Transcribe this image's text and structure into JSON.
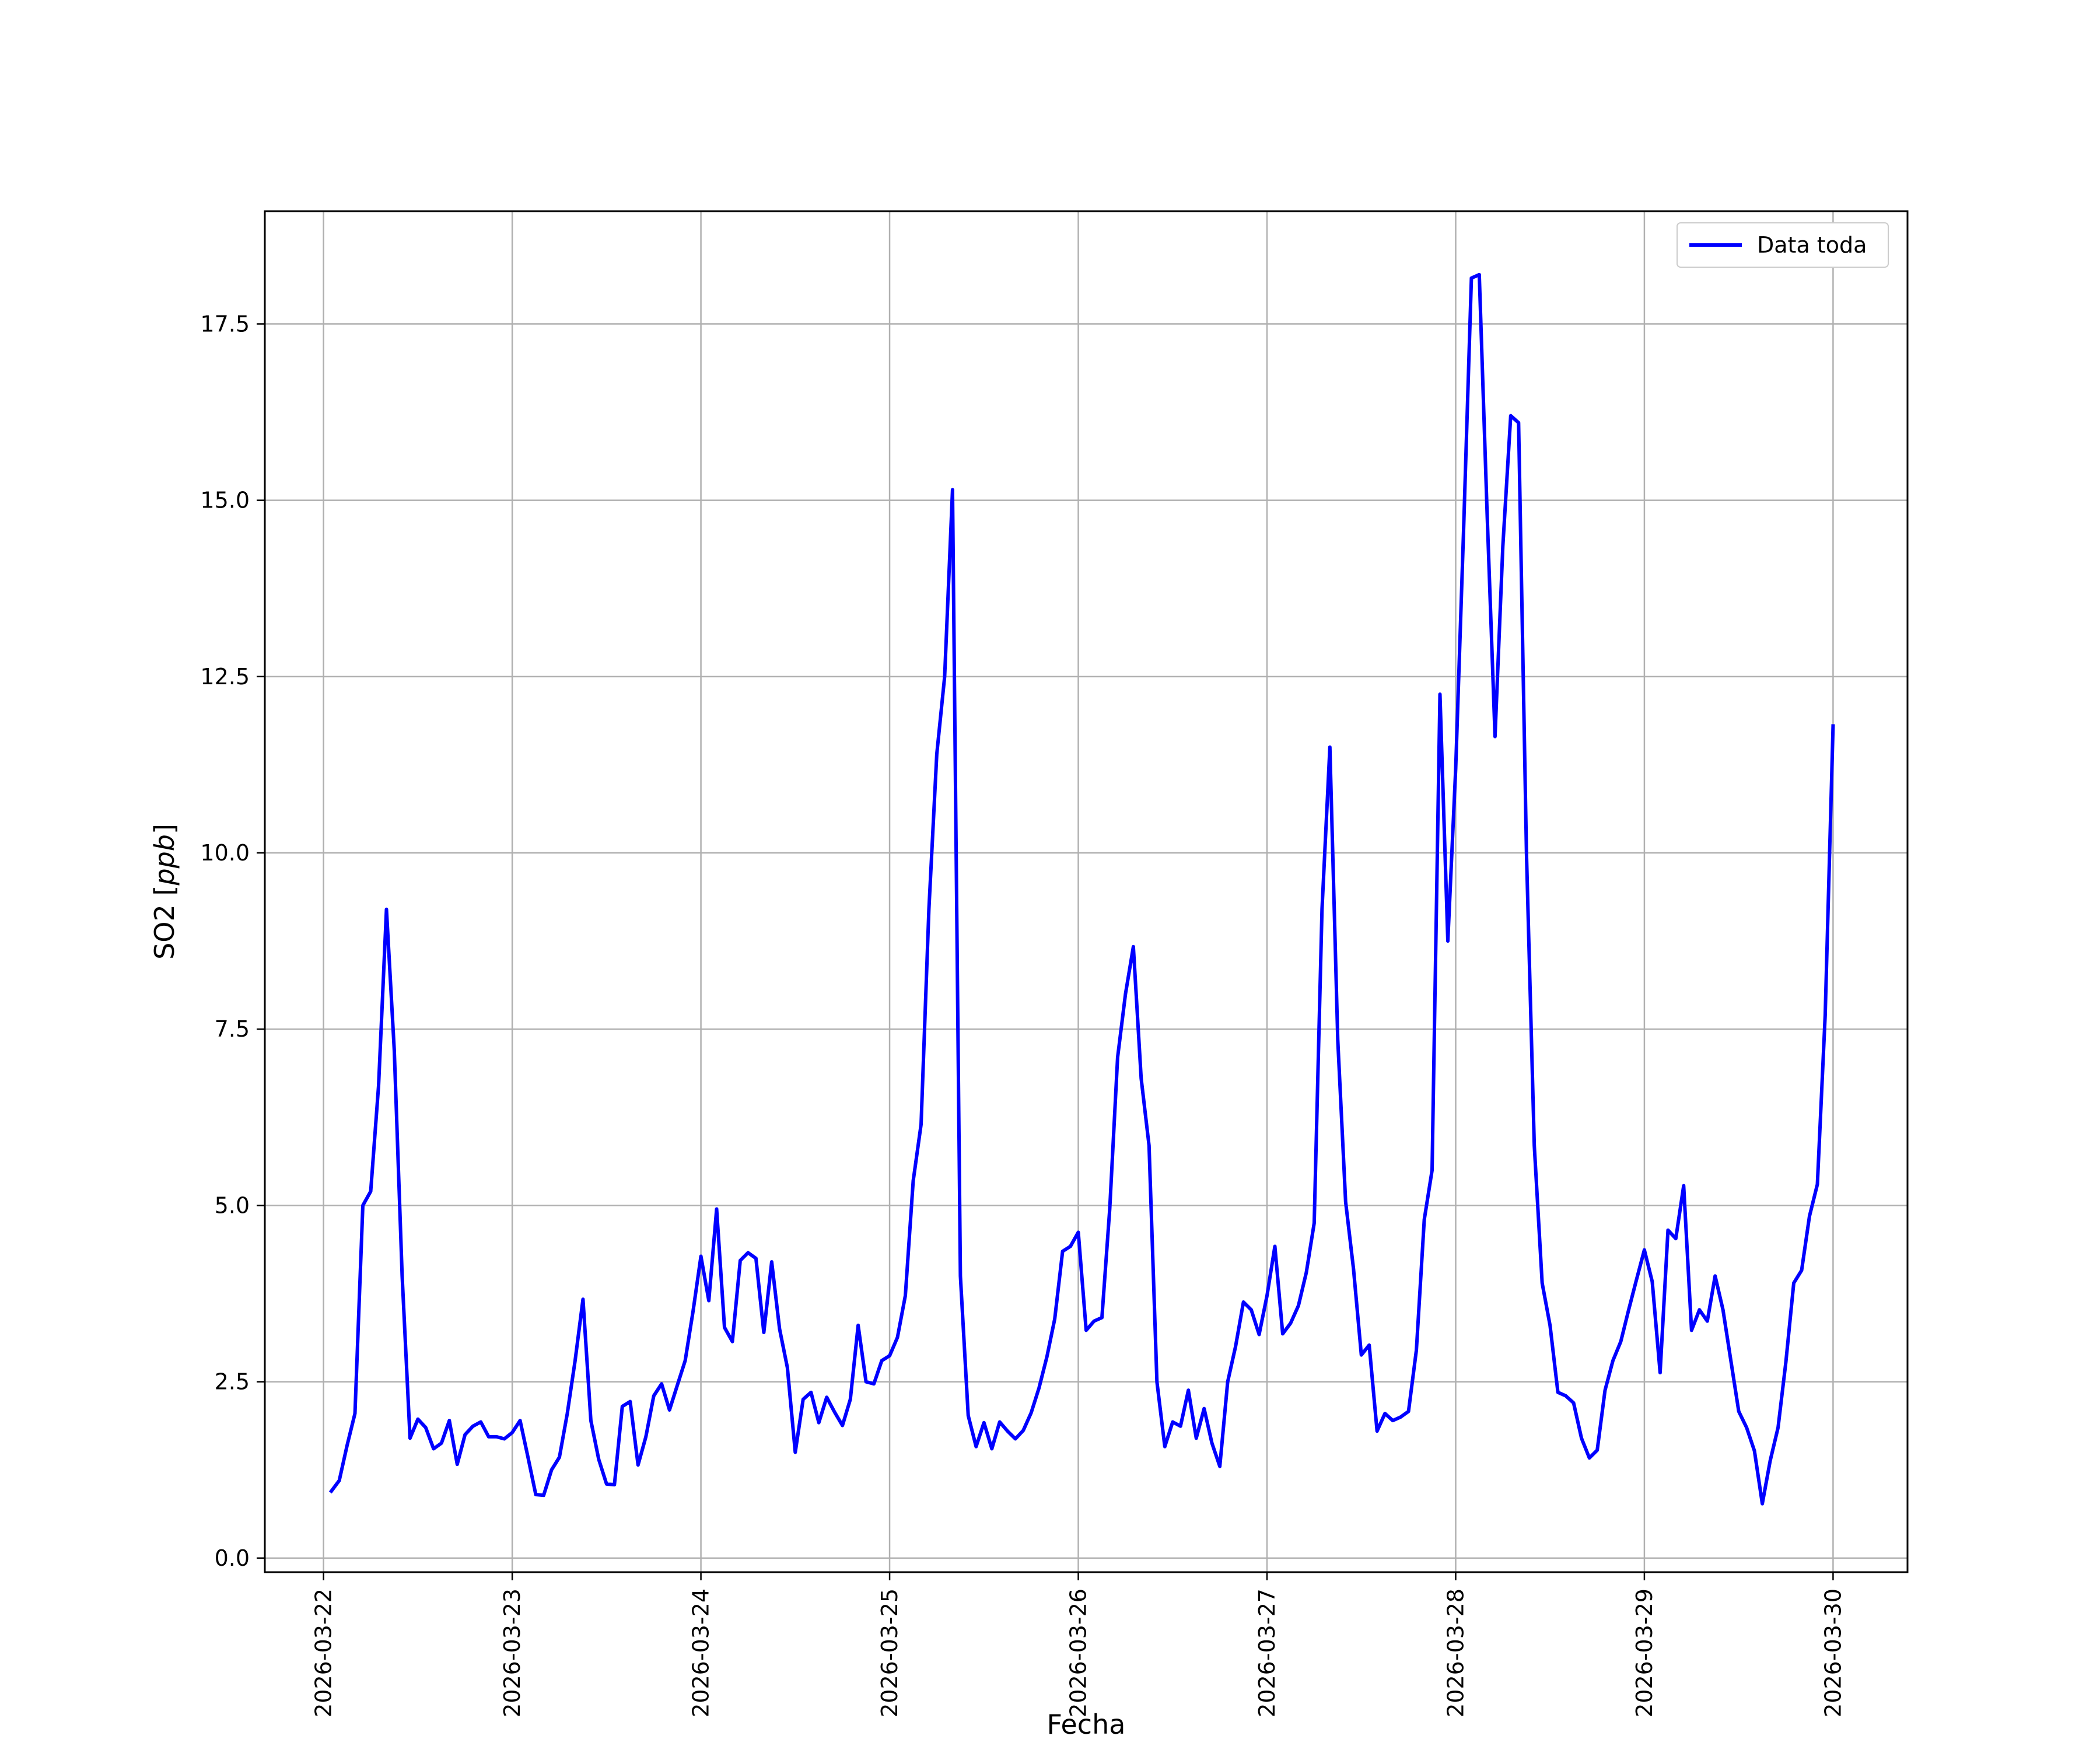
{
  "chart_data": {
    "type": "line",
    "title": "",
    "xlabel": "Fecha",
    "ylabel_text": "SO2 [",
    "ylabel_unit": "ppb",
    "ylabel_close": "]",
    "x_start": "2026-03-22T00:00",
    "x_end": "2026-03-30T00:00",
    "xlim": [
      "2026-03-21T16:32",
      "2026-03-30T09:28"
    ],
    "ylim": [
      -0.2,
      19.1
    ],
    "grid": true,
    "legend_position": "top-right",
    "x_ticks": [
      "2026-03-22",
      "2026-03-23",
      "2026-03-24",
      "2026-03-25",
      "2026-03-26",
      "2026-03-27",
      "2026-03-28",
      "2026-03-29",
      "2026-03-30"
    ],
    "y_ticks": [
      0.0,
      2.5,
      5.0,
      7.5,
      10.0,
      12.5,
      15.0,
      17.5
    ],
    "y_tick_labels": [
      "0.0",
      "2.5",
      "5.0",
      "7.5",
      "10.0",
      "12.5",
      "15.0",
      "17.5"
    ],
    "series": [
      {
        "name": "Data toda",
        "color": "#0000ff",
        "x": [
          "2026-03-22T01:00",
          "2026-03-22T02:00",
          "2026-03-22T03:00",
          "2026-03-22T04:00",
          "2026-03-22T05:00",
          "2026-03-22T06:00",
          "2026-03-22T07:00",
          "2026-03-22T08:00",
          "2026-03-22T09:00",
          "2026-03-22T10:00",
          "2026-03-22T11:00",
          "2026-03-22T12:00",
          "2026-03-22T13:00",
          "2026-03-22T14:00",
          "2026-03-22T15:00",
          "2026-03-22T16:00",
          "2026-03-22T17:00",
          "2026-03-22T18:00",
          "2026-03-22T19:00",
          "2026-03-22T20:00",
          "2026-03-22T21:00",
          "2026-03-22T22:00",
          "2026-03-22T23:00",
          "2026-03-23T00:00",
          "2026-03-23T01:00",
          "2026-03-23T02:00",
          "2026-03-23T03:00",
          "2026-03-23T04:00",
          "2026-03-23T05:00",
          "2026-03-23T06:00",
          "2026-03-23T07:00",
          "2026-03-23T08:00",
          "2026-03-23T09:00",
          "2026-03-23T10:00",
          "2026-03-23T11:00",
          "2026-03-23T12:00",
          "2026-03-23T13:00",
          "2026-03-23T14:00",
          "2026-03-23T15:00",
          "2026-03-23T16:00",
          "2026-03-23T17:00",
          "2026-03-23T18:00",
          "2026-03-23T19:00",
          "2026-03-23T20:00",
          "2026-03-23T21:00",
          "2026-03-23T22:00",
          "2026-03-23T23:00",
          "2026-03-24T00:00",
          "2026-03-24T01:00",
          "2026-03-24T02:00",
          "2026-03-24T03:00",
          "2026-03-24T04:00",
          "2026-03-24T05:00",
          "2026-03-24T06:00",
          "2026-03-24T07:00",
          "2026-03-24T08:00",
          "2026-03-24T09:00",
          "2026-03-24T10:00",
          "2026-03-24T11:00",
          "2026-03-24T12:00",
          "2026-03-24T13:00",
          "2026-03-24T14:00",
          "2026-03-24T15:00",
          "2026-03-24T16:00",
          "2026-03-24T17:00",
          "2026-03-24T18:00",
          "2026-03-24T19:00",
          "2026-03-24T20:00",
          "2026-03-24T21:00",
          "2026-03-24T22:00",
          "2026-03-24T23:00",
          "2026-03-25T00:00",
          "2026-03-25T01:00",
          "2026-03-25T02:00",
          "2026-03-25T03:00",
          "2026-03-25T04:00",
          "2026-03-25T05:00",
          "2026-03-25T06:00",
          "2026-03-25T07:00",
          "2026-03-25T08:00",
          "2026-03-25T09:00",
          "2026-03-25T10:00",
          "2026-03-25T11:00",
          "2026-03-25T12:00",
          "2026-03-25T13:00",
          "2026-03-25T14:00",
          "2026-03-25T15:00",
          "2026-03-25T16:00",
          "2026-03-25T17:00",
          "2026-03-25T18:00",
          "2026-03-25T19:00",
          "2026-03-25T20:00",
          "2026-03-25T21:00",
          "2026-03-25T22:00",
          "2026-03-25T23:00",
          "2026-03-26T00:00",
          "2026-03-26T01:00",
          "2026-03-26T02:00",
          "2026-03-26T03:00",
          "2026-03-26T04:00",
          "2026-03-26T05:00",
          "2026-03-26T06:00",
          "2026-03-26T07:00",
          "2026-03-26T08:00",
          "2026-03-26T09:00",
          "2026-03-26T10:00",
          "2026-03-26T11:00",
          "2026-03-26T12:00",
          "2026-03-26T13:00",
          "2026-03-26T14:00",
          "2026-03-26T15:00",
          "2026-03-26T16:00",
          "2026-03-26T17:00",
          "2026-03-26T18:00",
          "2026-03-26T19:00",
          "2026-03-26T20:00",
          "2026-03-26T21:00",
          "2026-03-26T22:00",
          "2026-03-26T23:00",
          "2026-03-27T00:00",
          "2026-03-27T01:00",
          "2026-03-27T02:00",
          "2026-03-27T03:00",
          "2026-03-27T04:00",
          "2026-03-27T05:00",
          "2026-03-27T06:00",
          "2026-03-27T07:00",
          "2026-03-27T08:00",
          "2026-03-27T09:00",
          "2026-03-27T10:00",
          "2026-03-27T11:00",
          "2026-03-27T12:00",
          "2026-03-27T13:00",
          "2026-03-27T14:00",
          "2026-03-27T15:00",
          "2026-03-27T16:00",
          "2026-03-27T17:00",
          "2026-03-27T18:00",
          "2026-03-27T19:00",
          "2026-03-27T20:00",
          "2026-03-27T21:00",
          "2026-03-27T22:00",
          "2026-03-27T23:00",
          "2026-03-28T00:00",
          "2026-03-28T01:00",
          "2026-03-28T02:00",
          "2026-03-28T03:00",
          "2026-03-28T04:00",
          "2026-03-28T05:00",
          "2026-03-28T06:00",
          "2026-03-28T07:00",
          "2026-03-28T08:00",
          "2026-03-28T09:00",
          "2026-03-28T10:00",
          "2026-03-28T11:00",
          "2026-03-28T12:00",
          "2026-03-28T13:00",
          "2026-03-28T14:00",
          "2026-03-28T15:00",
          "2026-03-28T16:00",
          "2026-03-28T17:00",
          "2026-03-28T18:00",
          "2026-03-28T19:00",
          "2026-03-28T20:00",
          "2026-03-28T21:00",
          "2026-03-28T22:00",
          "2026-03-28T23:00",
          "2026-03-29T00:00",
          "2026-03-29T01:00",
          "2026-03-29T02:00",
          "2026-03-29T03:00",
          "2026-03-29T04:00",
          "2026-03-29T05:00",
          "2026-03-29T06:00",
          "2026-03-29T07:00",
          "2026-03-29T08:00",
          "2026-03-29T09:00",
          "2026-03-29T10:00",
          "2026-03-29T11:00",
          "2026-03-29T12:00",
          "2026-03-29T13:00",
          "2026-03-29T14:00",
          "2026-03-29T15:00",
          "2026-03-29T16:00",
          "2026-03-29T17:00",
          "2026-03-29T18:00",
          "2026-03-29T19:00",
          "2026-03-29T20:00",
          "2026-03-29T21:00",
          "2026-03-29T22:00",
          "2026-03-29T23:00",
          "2026-03-30T00:00"
        ],
        "y": [
          0.95,
          1.1,
          1.6,
          2.05,
          5.0,
          5.2,
          6.7,
          9.2,
          7.2,
          4.0,
          1.7,
          1.97,
          1.85,
          1.55,
          1.63,
          1.95,
          1.33,
          1.75,
          1.87,
          1.93,
          1.72,
          1.72,
          1.69,
          1.78,
          1.95,
          1.43,
          0.9,
          0.89,
          1.25,
          1.43,
          2.05,
          2.8,
          3.67,
          1.95,
          1.4,
          1.05,
          1.04,
          2.15,
          2.22,
          1.32,
          1.72,
          2.3,
          2.47,
          2.1,
          2.45,
          2.8,
          3.5,
          4.28,
          3.65,
          4.95,
          3.27,
          3.07,
          4.22,
          4.33,
          4.25,
          3.2,
          4.2,
          3.25,
          2.7,
          1.5,
          2.25,
          2.35,
          1.92,
          2.28,
          2.07,
          1.88,
          2.25,
          3.3,
          2.5,
          2.47,
          2.8,
          2.87,
          3.13,
          3.72,
          5.35,
          6.15,
          9.2,
          11.4,
          12.5,
          15.15,
          4.0,
          2.02,
          1.58,
          1.92,
          1.55,
          1.93,
          1.8,
          1.69,
          1.81,
          2.06,
          2.41,
          2.85,
          3.39,
          4.35,
          4.42,
          4.62,
          3.23,
          3.36,
          3.41,
          4.95,
          7.1,
          8.0,
          8.67,
          6.8,
          5.85,
          2.5,
          1.58,
          1.93,
          1.87,
          2.38,
          1.7,
          2.12,
          1.63,
          1.3,
          2.5,
          3.0,
          3.63,
          3.52,
          3.17,
          3.72,
          4.42,
          3.18,
          3.33,
          3.58,
          4.05,
          4.75,
          9.2,
          11.5,
          7.35,
          5.05,
          4.1,
          2.88,
          3.02,
          1.8,
          2.05,
          1.95,
          2.0,
          2.08,
          2.95,
          4.8,
          5.5,
          12.25,
          8.75,
          11.2,
          14.55,
          18.15,
          18.2,
          14.8,
          11.65,
          14.35,
          16.2,
          16.1,
          10.0,
          5.85,
          3.9,
          3.3,
          2.35,
          2.3,
          2.2,
          1.7,
          1.42,
          1.53,
          2.38,
          2.8,
          3.07,
          3.52,
          3.95,
          4.37,
          3.92,
          2.63,
          4.65,
          4.53,
          5.28,
          3.23,
          3.52,
          3.36,
          4.0,
          3.52,
          2.8,
          2.08,
          1.85,
          1.52,
          0.77,
          1.38,
          1.85,
          2.78,
          3.9,
          4.08,
          4.85,
          5.3,
          7.7,
          11.8
        ]
      }
    ]
  }
}
